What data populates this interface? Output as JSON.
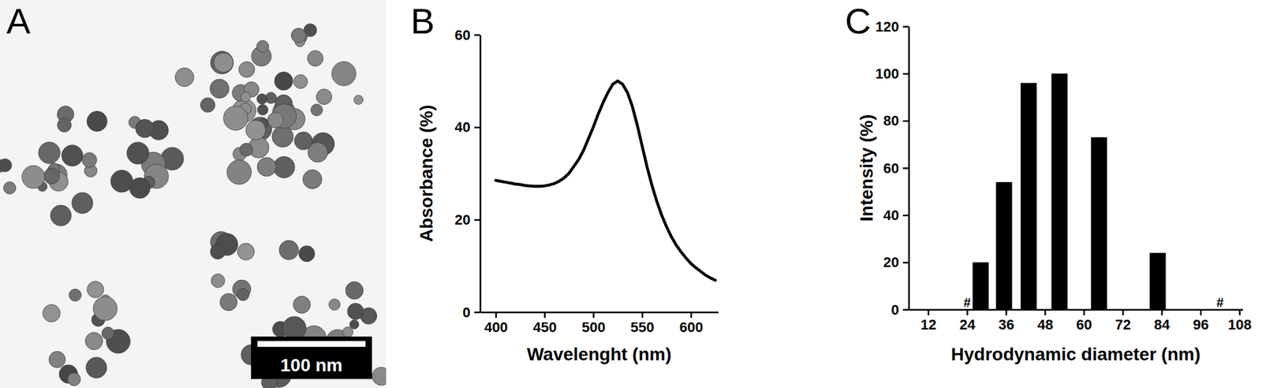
{
  "chart_data": [
    {
      "type": "image",
      "panel": "A",
      "scale_bar": "100 nm"
    },
    {
      "type": "line",
      "panel": "B",
      "x_label": "Wavelenght (nm)",
      "y_label": "Absorbance (%)",
      "x": [
        400,
        405,
        410,
        415,
        420,
        425,
        430,
        435,
        440,
        445,
        450,
        455,
        460,
        465,
        470,
        475,
        480,
        485,
        490,
        495,
        500,
        505,
        510,
        515,
        520,
        525,
        530,
        535,
        540,
        545,
        550,
        555,
        560,
        565,
        570,
        575,
        580,
        585,
        590,
        595,
        600,
        605,
        610,
        615,
        620,
        625
      ],
      "values": [
        28.5,
        28.3,
        28.1,
        27.9,
        27.7,
        27.6,
        27.4,
        27.3,
        27.2,
        27.2,
        27.3,
        27.5,
        27.8,
        28.3,
        29.0,
        30.0,
        31.5,
        33.0,
        35.0,
        37.5,
        40.0,
        42.8,
        45.3,
        47.5,
        49.3,
        50.0,
        49.3,
        47.5,
        44.5,
        40.5,
        36.0,
        31.5,
        27.5,
        24.0,
        21.0,
        18.5,
        16.3,
        14.5,
        13.0,
        11.7,
        10.5,
        9.6,
        8.8,
        8.0,
        7.4,
        6.9
      ],
      "color": "#000000",
      "xlim": [
        384,
        628
      ],
      "xticks": [
        400,
        450,
        500,
        550,
        600
      ],
      "ylim": [
        0,
        60
      ],
      "yticks": [
        0,
        20,
        40,
        60
      ]
    },
    {
      "type": "bar",
      "panel": "C",
      "x_label": "Hydrodynamic diameter (nm)",
      "y_label": "Intensity (%)",
      "x": [
        28.2,
        35.4,
        43.0,
        52.5,
        64.7,
        82.8
      ],
      "values": [
        20,
        54,
        96,
        100,
        73,
        24
      ],
      "color": "#000000",
      "xlim": [
        6,
        109
      ],
      "xticks": [
        12,
        24,
        36,
        48,
        60,
        72,
        84,
        96,
        108
      ],
      "ylim": [
        0,
        120
      ],
      "yticks": [
        0,
        20,
        40,
        60,
        80,
        100,
        120
      ],
      "annotations": [
        {
          "text": "#",
          "x": 24,
          "y": 0
        },
        {
          "text": "#",
          "x": 102,
          "y": 0
        }
      ]
    }
  ]
}
